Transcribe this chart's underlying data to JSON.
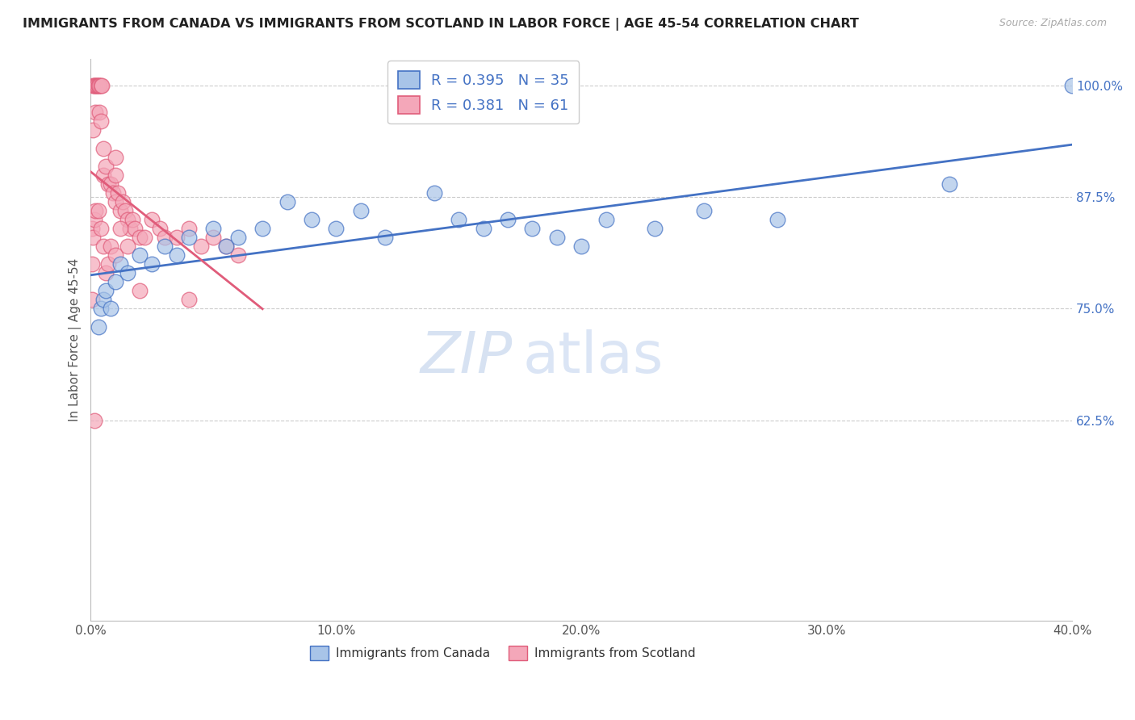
{
  "title": "IMMIGRANTS FROM CANADA VS IMMIGRANTS FROM SCOTLAND IN LABOR FORCE | AGE 45-54 CORRELATION CHART",
  "source": "Source: ZipAtlas.com",
  "ylabel": "In Labor Force | Age 45-54",
  "legend1_label": "R = 0.395   N = 35",
  "legend2_label": "R = 0.381   N = 61",
  "legend_label_canada": "Immigrants from Canada",
  "legend_label_scotland": "Immigrants from Scotland",
  "canada_color": "#a8c4e8",
  "scotland_color": "#f4a7b9",
  "canada_line_color": "#4472c4",
  "scotland_line_color": "#e05c7a",
  "watermark_zip": "ZIP",
  "watermark_atlas": "atlas",
  "background_color": "#ffffff",
  "grid_color": "#cccccc",
  "R_canada": 0.395,
  "N_canada": 35,
  "R_scotland": 0.381,
  "N_scotland": 61,
  "canada_x": [
    0.3,
    0.4,
    0.5,
    0.6,
    0.8,
    1.0,
    1.2,
    1.5,
    2.0,
    2.5,
    3.0,
    3.5,
    4.0,
    5.0,
    5.5,
    6.0,
    7.0,
    8.0,
    9.0,
    10.0,
    11.0,
    12.0,
    14.0,
    15.0,
    16.0,
    17.0,
    18.0,
    19.0,
    20.0,
    21.0,
    23.0,
    25.0,
    28.0,
    35.0,
    40.0
  ],
  "canada_y": [
    73.0,
    75.0,
    76.0,
    77.0,
    75.0,
    78.0,
    80.0,
    79.0,
    81.0,
    80.0,
    82.0,
    81.0,
    83.0,
    84.0,
    82.0,
    83.0,
    84.0,
    87.0,
    85.0,
    84.0,
    86.0,
    83.0,
    88.0,
    85.0,
    84.0,
    85.0,
    84.0,
    83.0,
    82.0,
    85.0,
    84.0,
    86.0,
    85.0,
    89.0,
    100.0
  ],
  "scotland_x": [
    0.05,
    0.1,
    0.1,
    0.15,
    0.15,
    0.2,
    0.2,
    0.25,
    0.25,
    0.3,
    0.3,
    0.35,
    0.35,
    0.4,
    0.4,
    0.45,
    0.5,
    0.5,
    0.6,
    0.7,
    0.8,
    0.9,
    1.0,
    1.0,
    1.0,
    1.1,
    1.2,
    1.3,
    1.4,
    1.5,
    1.6,
    1.7,
    1.8,
    2.0,
    2.2,
    2.5,
    2.8,
    3.0,
    3.5,
    4.0,
    4.5,
    5.0,
    5.5,
    6.0,
    0.05,
    0.05,
    0.1,
    0.15,
    0.2,
    0.3,
    0.4,
    0.5,
    0.6,
    0.7,
    0.8,
    1.0,
    1.2,
    1.5,
    2.0,
    4.0,
    0.15
  ],
  "scotland_y": [
    84.0,
    100.0,
    95.0,
    100.0,
    100.0,
    100.0,
    97.0,
    100.0,
    100.0,
    100.0,
    100.0,
    100.0,
    97.0,
    96.0,
    100.0,
    100.0,
    93.0,
    90.0,
    91.0,
    89.0,
    89.0,
    88.0,
    87.0,
    90.0,
    92.0,
    88.0,
    86.0,
    87.0,
    86.0,
    85.0,
    84.0,
    85.0,
    84.0,
    83.0,
    83.0,
    85.0,
    84.0,
    83.0,
    83.0,
    84.0,
    82.0,
    83.0,
    82.0,
    81.0,
    76.0,
    80.0,
    83.0,
    85.0,
    86.0,
    86.0,
    84.0,
    82.0,
    79.0,
    80.0,
    82.0,
    81.0,
    84.0,
    82.0,
    77.0,
    76.0,
    62.5
  ]
}
